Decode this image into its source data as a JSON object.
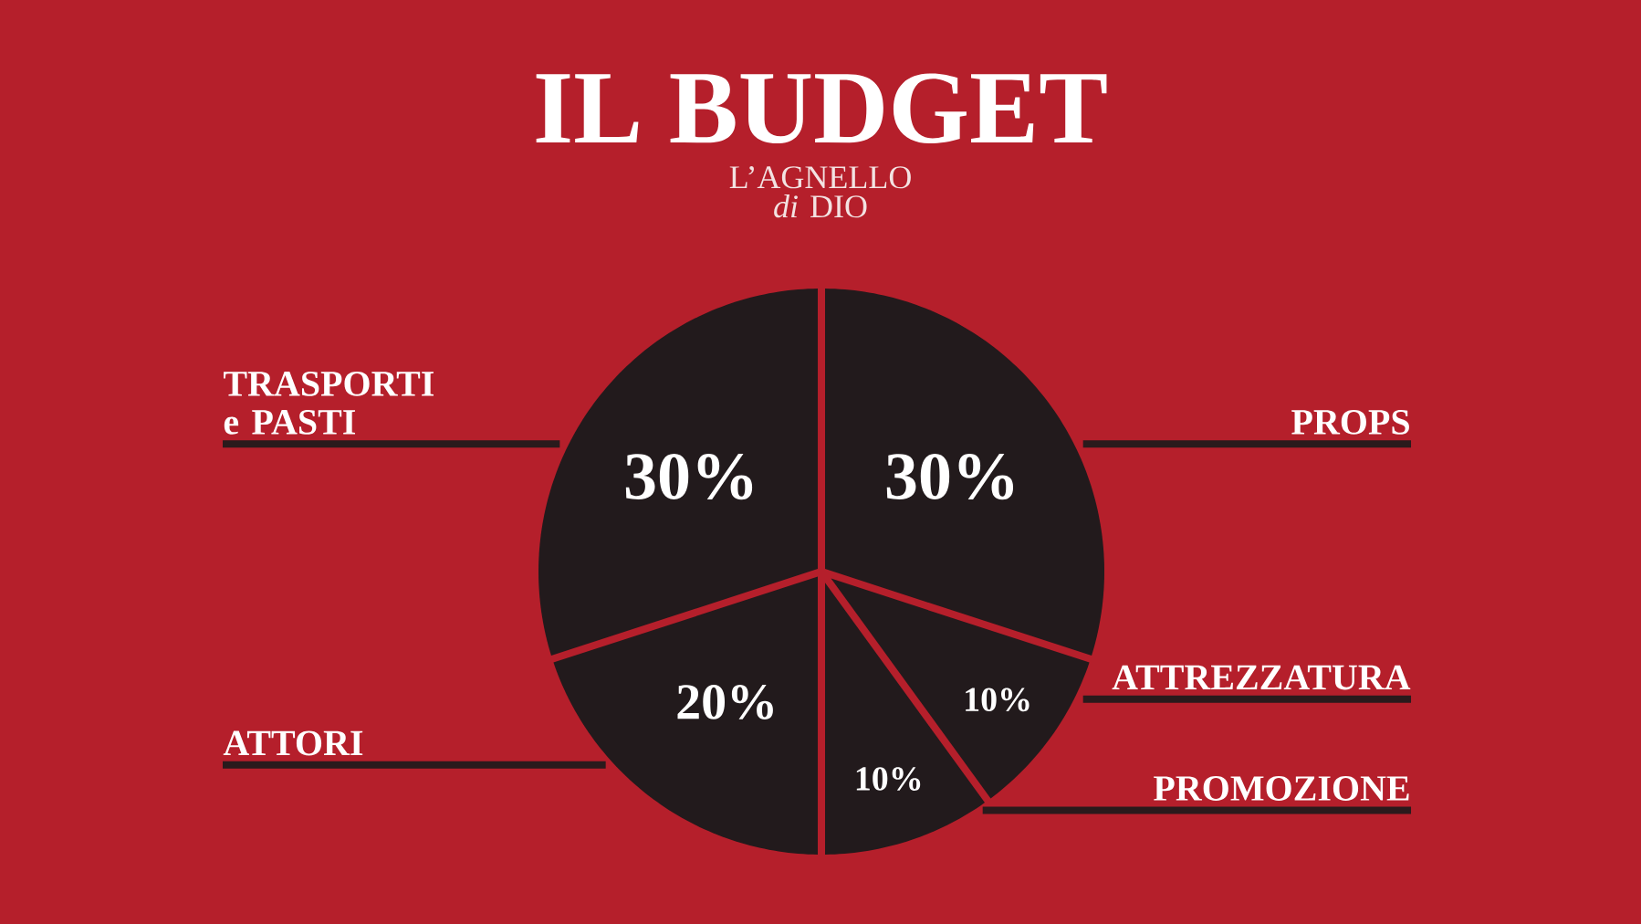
{
  "chart_data": {
    "type": "pie",
    "title": "IL BUDGET",
    "subtitle": "L’AGNELLO *di* DIO",
    "categories": [
      "TRASPORTI e PASTI",
      "ATTORI",
      "PROMOZIONE",
      "ATTREZZATURA",
      "PROPS"
    ],
    "values": [
      30,
      20,
      10,
      10,
      30
    ],
    "value_labels": [
      "30%",
      "20%",
      "10%",
      "10%",
      "30%"
    ],
    "colors": [
      "#221a1c",
      "#221a1c",
      "#221a1c",
      "#221a1c",
      "#221a1c"
    ]
  }
}
